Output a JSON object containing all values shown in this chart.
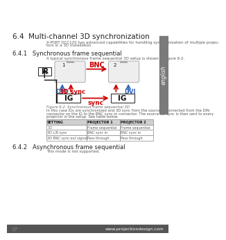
{
  "title": "6.4  Multi-channel 3D synchronization",
  "body_text_1": "X-PORT DCC120 has advanced capabilities for handling synchronization of multiple projec-",
  "body_text_2": "tors in a 3D installation.",
  "section_641": "6.4.1   Synchronous frame sequential",
  "section_641_body": "A typical synchronous frame sequential 3D setup is shown in Figure 6-2.",
  "figure_caption": "Figure 6-2. Synchronous frame sequential 3D",
  "figure_body_1": "In this case IGs are synchronized and 3D sync from the source is connected from the DIN",
  "figure_body_2": "connector on the IG to the BNC sync-in connector. The source 3D sync is then sent to every",
  "figure_body_3": "projector in the setup. See table below.",
  "section_642": "6.4.2   Asynchronous frame sequential",
  "section_642_body": "This mode is not supported.",
  "table_headers": [
    "SETTING",
    "PROJECTOR 1",
    "PROJECTOR 2"
  ],
  "table_rows": [
    [
      "3D",
      "Frame sequential",
      "Frame sequential"
    ],
    [
      "3D L/R sync",
      "BNC sync in",
      "BNC sync in"
    ],
    [
      "3D BNC sync-out signal",
      "Pass through",
      "Pass through"
    ]
  ],
  "page_num": "37",
  "website": "www.projectiondesign.com",
  "bg_color": "#ffffff",
  "sidebar_color": "#7a7a7a",
  "sidebar_text": "english",
  "title_color": "#222222",
  "text_color": "#555555",
  "caption_color": "#666666",
  "red_color": "#cc0000",
  "blue_color": "#3366bb",
  "black_color": "#111111",
  "footer_color": "#555555",
  "footer_text_color": "#dddddd",
  "page_num_color": "#888888"
}
